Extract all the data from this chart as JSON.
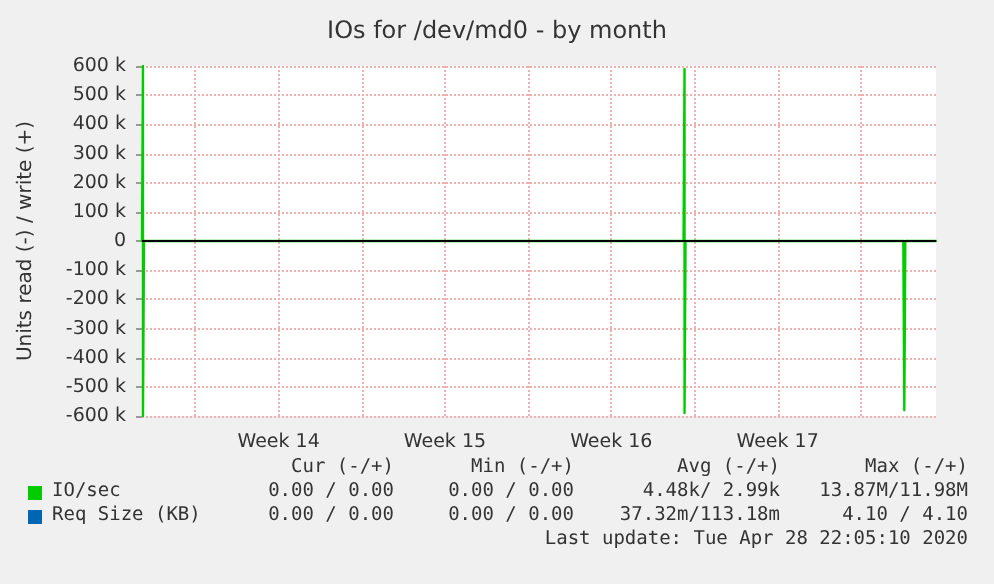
{
  "chart_data": {
    "type": "line",
    "title": "IOs for /dev/md0 - by month",
    "ylabel": "Units read (-) / write (+)",
    "xlim": [
      "2020-03-27T18:00",
      "2020-04-30T04:00"
    ],
    "xticks": [
      {
        "value": "2020-03-30",
        "label": null
      },
      {
        "value": "2020-04-02T12:00",
        "label": "Week 14"
      },
      {
        "value": "2020-04-06",
        "label": null
      },
      {
        "value": "2020-04-09T12:00",
        "label": "Week 15"
      },
      {
        "value": "2020-04-13",
        "label": null
      },
      {
        "value": "2020-04-16T12:00",
        "label": "Week 16"
      },
      {
        "value": "2020-04-20",
        "label": null
      },
      {
        "value": "2020-04-23T12:00",
        "label": "Week 17"
      },
      {
        "value": "2020-04-27",
        "label": null
      }
    ],
    "ylim": [
      -600000,
      600000
    ],
    "yticks": [
      {
        "value": -600000,
        "label": "-600 k"
      },
      {
        "value": -500000,
        "label": "-500 k"
      },
      {
        "value": -400000,
        "label": "-400 k"
      },
      {
        "value": -300000,
        "label": "-300 k"
      },
      {
        "value": -200000,
        "label": "-200 k"
      },
      {
        "value": -100000,
        "label": "-100 k"
      },
      0,
      {
        "value": 100000,
        "label": "100 k"
      },
      {
        "value": 200000,
        "label": "200 k"
      },
      {
        "value": 300000,
        "label": "300 k"
      },
      {
        "value": 400000,
        "label": "400 k"
      },
      {
        "value": 500000,
        "label": "500 k"
      },
      {
        "value": 600000,
        "label": "600 k"
      }
    ],
    "series": [
      {
        "name": "IO/sec",
        "color": "#00cc00",
        "x": [
          "2020-03-27T18:00",
          "2020-03-27T19:00",
          "2020-03-27T19:00",
          "2020-03-27T20:00",
          "2020-04-19T13:00",
          "2020-04-19T14:00",
          "2020-04-19T14:00",
          "2020-04-19T15:00",
          "2020-04-28T19:00",
          "2020-04-28T20:00",
          "2020-04-28T21:00",
          "2020-04-30T04:00"
        ],
        "values": [
          0,
          600000,
          -600000,
          0,
          0,
          590000,
          -590000,
          0,
          0,
          -580000,
          0,
          0
        ]
      },
      {
        "name": "Req Size (KB)",
        "color": "#0066b3"
      }
    ],
    "ref_lines": [
      {
        "axis": "y",
        "value": 0,
        "label": null,
        "color": "#000000"
      }
    ],
    "annotations": [
      "Cur (-/+)",
      "Min (-/+)",
      "Avg (-/+)",
      "Max (-/+)",
      "0.00 / 0.00",
      "0.00 / 0.00",
      "4.48k/ 2.99k",
      "13.87M/11.98M",
      "0.00 / 0.00",
      "0.00 / 0.00",
      "37.32m/113.18m",
      "4.10 / 4.10",
      "Last update: Tue Apr 28 22:05:10 2020"
    ],
    "grid": true,
    "legend": "bottom",
    "marker": "none",
    "line_style": "solid"
  }
}
